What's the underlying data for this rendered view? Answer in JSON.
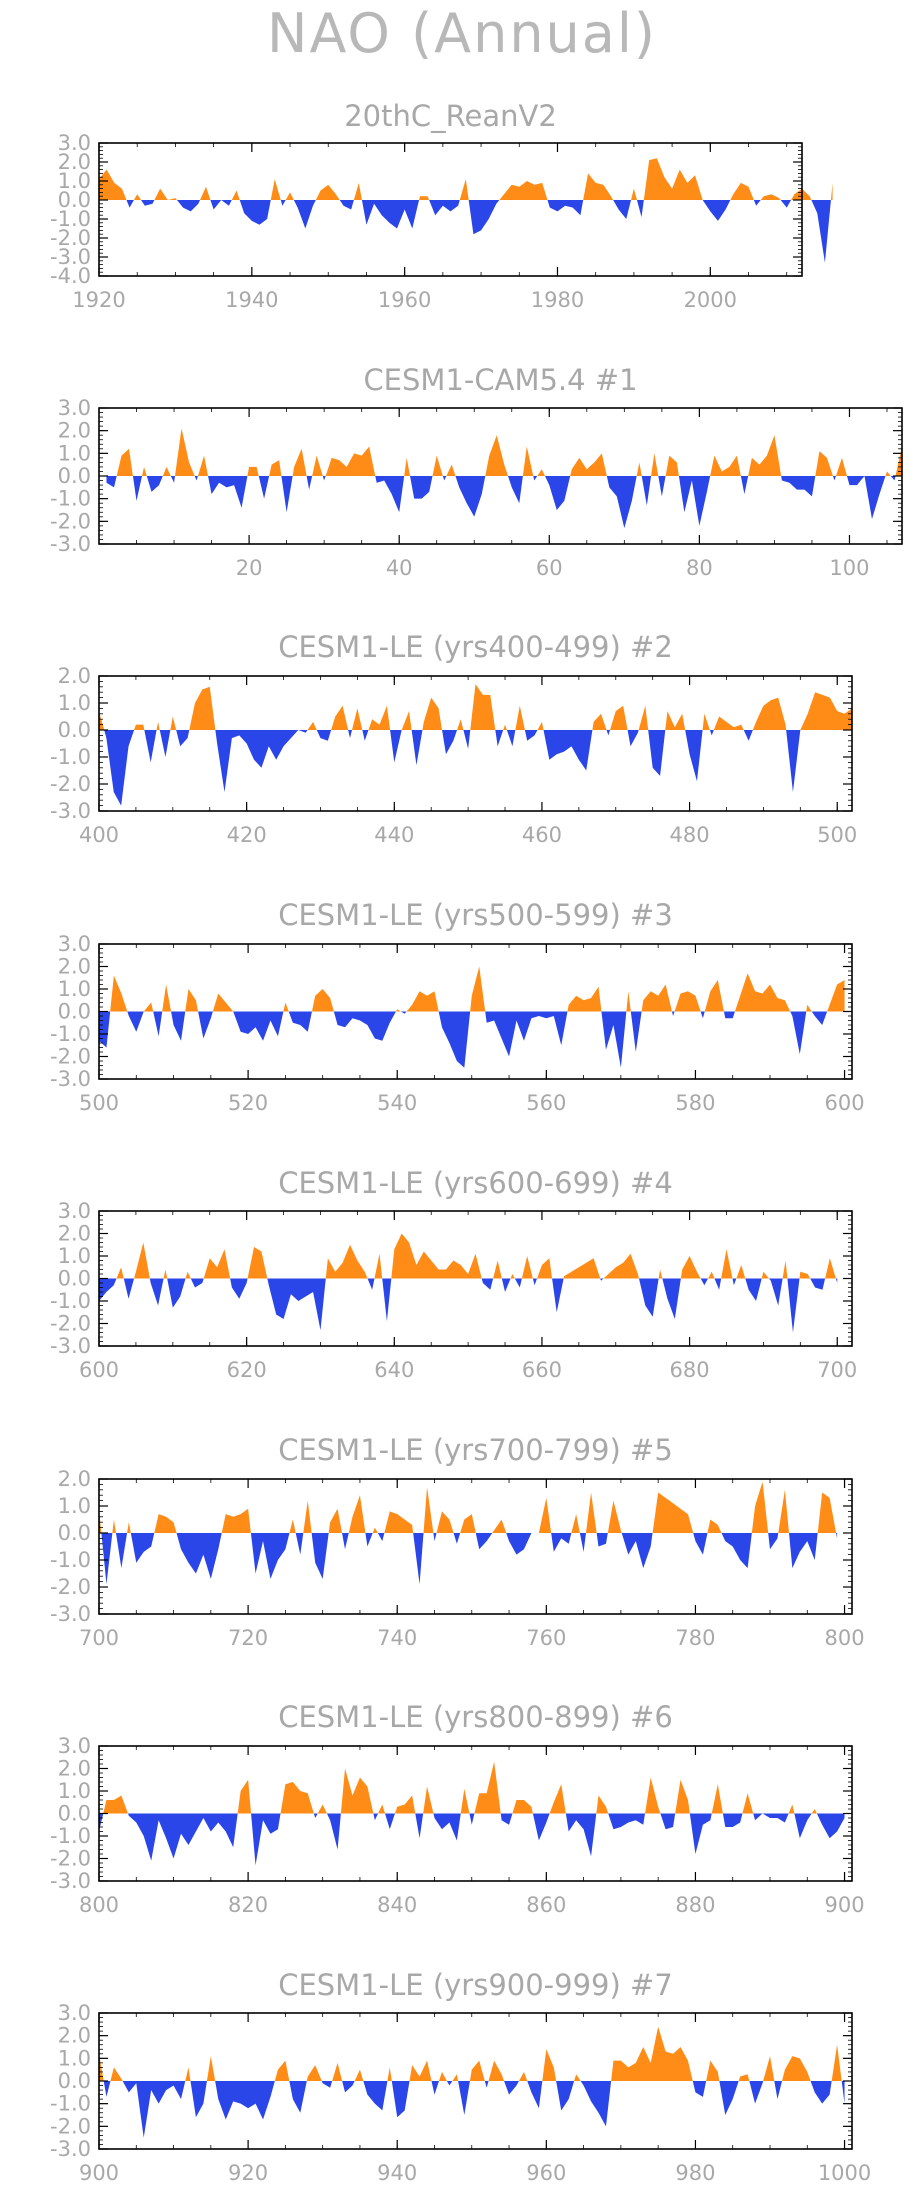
{
  "page_title": "NAO  (Annual)",
  "colors": {
    "positive": "#ff8c17",
    "negative": "#2b46e8",
    "text": "#a8a8a8",
    "axis": "#000000"
  },
  "chart_data": [
    {
      "type": "area",
      "title": "20thC_ReanV2",
      "xlim": [
        1920,
        2012
      ],
      "ylim": [
        -4.0,
        3.0
      ],
      "yticks": [
        "3.0",
        "2.0",
        "1.0",
        "0.0",
        "-1.0",
        "-2.0",
        "-3.0",
        "-4.0"
      ],
      "xticks": [
        "1920",
        "1940",
        "1960",
        "1980",
        "2000"
      ],
      "values": [
        1.1,
        1.6,
        0.9,
        0.6,
        -0.4,
        0.3,
        -0.3,
        -0.2,
        0.6,
        0.0,
        0.1,
        -0.4,
        -0.6,
        -0.2,
        0.7,
        -0.5,
        0.0,
        -0.3,
        0.5,
        -0.7,
        -1.1,
        -1.3,
        -1.0,
        1.1,
        -0.3,
        0.4,
        -0.4,
        -1.5,
        -0.3,
        0.5,
        0.8,
        0.3,
        -0.3,
        -0.5,
        0.9,
        -1.3,
        -0.2,
        -0.8,
        -1.2,
        -1.5,
        -0.5,
        -1.5,
        0.2,
        0.2,
        -0.8,
        -0.3,
        -0.6,
        -0.3,
        1.1,
        -1.8,
        -1.6,
        -1.0,
        -0.2,
        0.3,
        0.8,
        0.7,
        1.0,
        0.8,
        0.9,
        -0.4,
        -0.6,
        -0.3,
        -0.4,
        -0.8,
        1.4,
        0.9,
        0.8,
        0.2,
        -0.5,
        -1.0,
        0.6,
        -0.9,
        2.1,
        2.2,
        1.2,
        0.6,
        1.6,
        0.9,
        1.3,
        0.0,
        -0.6,
        -1.1,
        -0.5,
        0.3,
        0.9,
        0.7,
        -0.3,
        0.2,
        0.3,
        0.1,
        -0.4,
        0.3,
        0.6,
        0.2,
        -0.7,
        -3.3,
        0.9
      ]
    },
    {
      "type": "area",
      "title": "CESM1-CAM5.4           #1",
      "xlim": [
        0,
        107
      ],
      "ylim": [
        -3.0,
        3.0
      ],
      "yticks": [
        "3.0",
        "2.0",
        "1.0",
        "0.0",
        "-1.0",
        "-2.0",
        "-3.0"
      ],
      "xticks": [
        "20",
        "40",
        "60",
        "80",
        "100"
      ],
      "values": [
        -0.3,
        -0.5,
        0.9,
        1.2,
        -1.1,
        0.4,
        -0.7,
        -0.4,
        0.4,
        -0.3,
        2.1,
        0.6,
        -0.2,
        0.9,
        -0.8,
        -0.3,
        -0.5,
        -0.4,
        -1.4,
        0.4,
        0.4,
        -1.0,
        0.5,
        0.7,
        -1.6,
        0.4,
        1.2,
        -0.6,
        0.9,
        -0.2,
        0.8,
        0.7,
        0.4,
        1.0,
        0.9,
        1.3,
        -0.3,
        -0.2,
        -0.8,
        -1.6,
        0.8,
        -1.0,
        -1.0,
        -0.7,
        0.9,
        -0.2,
        0.5,
        -0.5,
        -1.2,
        -1.8,
        -0.8,
        0.9,
        1.8,
        0.5,
        -0.5,
        -1.2,
        1.3,
        -0.2,
        0.3,
        -0.4,
        -1.5,
        -1.1,
        0.3,
        0.8,
        0.3,
        0.6,
        1.0,
        -0.5,
        -0.9,
        -2.3,
        -1.1,
        0.6,
        -1.3,
        1.0,
        -0.9,
        0.9,
        0.6,
        -1.6,
        -0.2,
        -2.2,
        -0.7,
        0.9,
        0.2,
        0.4,
        0.9,
        -0.8,
        0.8,
        0.5,
        0.9,
        1.8,
        -0.2,
        -0.3,
        -0.6,
        -0.6,
        -0.9,
        1.1,
        0.8,
        -0.2,
        0.8,
        -0.4,
        -0.4,
        0.0,
        -1.9,
        -0.8,
        0.2,
        -0.2,
        1.3
      ]
    },
    {
      "type": "area",
      "title": "CESM1-LE (yrs400-499) #2",
      "xlim": [
        400,
        502
      ],
      "ylim": [
        -3.0,
        2.0
      ],
      "yticks": [
        "2.0",
        "1.0",
        "0.0",
        "-1.0",
        "-2.0",
        "-3.0"
      ],
      "xticks": [
        "400",
        "420",
        "440",
        "460",
        "480",
        "500"
      ],
      "values": [
        0.7,
        -0.3,
        -2.3,
        -2.8,
        -0.6,
        0.2,
        0.2,
        -1.2,
        0.3,
        -1.0,
        0.5,
        -0.6,
        -0.3,
        1.0,
        1.5,
        1.6,
        -0.5,
        -2.3,
        -0.3,
        -0.2,
        -0.5,
        -1.1,
        -1.4,
        -0.6,
        -1.1,
        -0.6,
        -0.3,
        0.0,
        -0.1,
        0.3,
        -0.3,
        -0.4,
        0.5,
        0.9,
        -0.3,
        0.8,
        -0.4,
        0.4,
        0.2,
        0.9,
        -1.2,
        0.0,
        0.7,
        -1.3,
        0.3,
        1.2,
        0.8,
        -0.9,
        -0.4,
        0.4,
        -0.7,
        1.7,
        1.3,
        1.3,
        -0.6,
        0.2,
        -0.6,
        0.9,
        -0.4,
        -0.2,
        0.3,
        -1.1,
        -0.9,
        -0.8,
        -0.6,
        -1.1,
        -1.5,
        0.3,
        0.6,
        -0.2,
        0.7,
        0.9,
        -0.6,
        -0.1,
        0.9,
        -1.4,
        -1.7,
        0.7,
        0.1,
        0.6,
        -0.9,
        -1.9,
        0.6,
        -0.2,
        0.5,
        0.3,
        0.1,
        0.2,
        -0.4,
        0.3,
        0.9,
        1.1,
        1.2,
        0.2,
        -2.3,
        0.0,
        0.6,
        1.4,
        1.3,
        1.2,
        0.7,
        0.6,
        0.8
      ]
    },
    {
      "type": "area",
      "title": "CESM1-LE (yrs500-599) #3",
      "xlim": [
        500,
        601
      ],
      "ylim": [
        -3.0,
        3.0
      ],
      "yticks": [
        "3.0",
        "2.0",
        "1.0",
        "0.0",
        "-1.0",
        "-2.0",
        "-3.0"
      ],
      "xticks": [
        "500",
        "520",
        "540",
        "560",
        "580",
        "600"
      ],
      "values": [
        -1.3,
        -1.6,
        1.6,
        0.8,
        -0.2,
        -0.9,
        0.0,
        0.4,
        -1.1,
        1.2,
        -0.6,
        -1.3,
        1.0,
        0.5,
        -1.2,
        -0.3,
        0.8,
        0.4,
        0.0,
        -0.9,
        -1.0,
        -0.7,
        -1.3,
        -0.4,
        -1.1,
        0.4,
        -0.5,
        -0.6,
        -0.9,
        0.7,
        1.0,
        0.6,
        -0.6,
        -0.7,
        -0.3,
        -0.4,
        -0.6,
        -1.2,
        -1.3,
        -0.5,
        0.1,
        -0.1,
        0.3,
        0.9,
        0.7,
        0.9,
        -0.7,
        -1.4,
        -2.2,
        -2.5,
        0.7,
        2.0,
        -0.5,
        -0.4,
        -1.2,
        -2.0,
        -0.4,
        -1.3,
        -0.3,
        -0.2,
        -0.3,
        -0.2,
        -1.5,
        0.3,
        0.7,
        0.5,
        0.6,
        1.1,
        -1.7,
        -0.6,
        -2.5,
        0.9,
        -1.8,
        0.5,
        0.9,
        0.7,
        1.2,
        -0.2,
        0.8,
        0.9,
        0.7,
        -0.3,
        0.9,
        1.4,
        -0.3,
        -0.3,
        0.7,
        1.7,
        0.9,
        0.8,
        1.2,
        0.6,
        0.5,
        -0.2,
        -1.9,
        0.3,
        -0.2,
        -0.6,
        0.3,
        1.2,
        1.4
      ]
    },
    {
      "type": "area",
      "title": "CESM1-LE (yrs600-699) #4",
      "xlim": [
        600,
        702
      ],
      "ylim": [
        -3.0,
        3.0
      ],
      "yticks": [
        "3.0",
        "2.0",
        "1.0",
        "0.0",
        "-1.0",
        "-2.0",
        "-3.0"
      ],
      "xticks": [
        "600",
        "620",
        "640",
        "660",
        "680",
        "700"
      ],
      "values": [
        -1.0,
        -0.6,
        -0.3,
        0.5,
        -0.9,
        0.3,
        1.6,
        -0.2,
        -1.2,
        0.4,
        -1.3,
        -0.8,
        0.3,
        -0.4,
        -0.2,
        0.9,
        0.5,
        1.3,
        -0.4,
        -0.9,
        -0.2,
        1.4,
        1.2,
        -0.3,
        -1.6,
        -1.8,
        -0.7,
        -1.0,
        -0.8,
        -0.6,
        -2.3,
        0.9,
        0.3,
        0.7,
        1.5,
        0.8,
        0.3,
        -0.5,
        1.1,
        -1.9,
        1.3,
        2.0,
        1.6,
        0.6,
        1.2,
        0.8,
        0.4,
        0.4,
        0.8,
        0.6,
        0.2,
        1.1,
        -0.2,
        -0.5,
        0.8,
        -0.6,
        0.2,
        -0.4,
        1.0,
        -0.3,
        0.6,
        0.9,
        -1.5,
        0.1,
        0.3,
        0.5,
        0.7,
        0.9,
        -0.1,
        0.2,
        0.5,
        0.7,
        1.1,
        0.2,
        -1.2,
        -1.7,
        0.4,
        -0.9,
        -1.8,
        0.4,
        1.0,
        0.3,
        -0.3,
        0.3,
        -0.5,
        1.3,
        -0.3,
        0.6,
        -0.5,
        -1.0,
        0.3,
        -0.1,
        -1.2,
        0.8,
        -2.4,
        0.3,
        0.2,
        -0.4,
        -0.5,
        0.9,
        -0.2
      ]
    },
    {
      "type": "area",
      "title": "CESM1-LE (yrs700-799) #5",
      "xlim": [
        700,
        801
      ],
      "ylim": [
        -3.0,
        2.0
      ],
      "yticks": [
        "2.0",
        "1.0",
        "0.0",
        "-1.0",
        "-2.0",
        "-3.0"
      ],
      "xticks": [
        "700",
        "720",
        "740",
        "760",
        "780",
        "800"
      ],
      "values": [
        0.9,
        -1.9,
        0.5,
        -1.3,
        0.4,
        -1.1,
        -0.7,
        -0.5,
        0.7,
        0.6,
        0.4,
        -0.6,
        -1.1,
        -1.5,
        -0.8,
        -1.7,
        -0.6,
        0.7,
        0.6,
        0.7,
        0.9,
        -1.5,
        -0.3,
        -1.7,
        -1.0,
        -0.6,
        0.5,
        -0.8,
        1.2,
        -1.1,
        -1.7,
        0.4,
        0.9,
        -0.6,
        0.6,
        1.4,
        -0.5,
        0.2,
        -0.3,
        0.8,
        0.7,
        0.5,
        0.3,
        -1.9,
        1.7,
        -0.3,
        0.8,
        0.5,
        -0.4,
        0.5,
        0.7,
        -0.6,
        -0.3,
        0.1,
        0.5,
        -0.3,
        -0.8,
        -0.6,
        0.0,
        0.0,
        1.3,
        -0.7,
        -0.2,
        -0.4,
        0.7,
        -0.7,
        1.5,
        -0.5,
        -0.4,
        1.2,
        0.1,
        -0.8,
        -0.3,
        -1.3,
        -0.5,
        1.5,
        1.3,
        1.1,
        0.9,
        0.7,
        -0.3,
        -0.8,
        0.5,
        0.3,
        -0.3,
        -0.5,
        -1.0,
        -1.3,
        1.0,
        1.9,
        -0.6,
        -0.2,
        1.6,
        -1.3,
        -0.7,
        -0.3,
        -1.0,
        1.5,
        1.3,
        -0.2
      ]
    },
    {
      "type": "area",
      "title": "CESM1-LE (yrs800-899) #6",
      "xlim": [
        800,
        901
      ],
      "ylim": [
        -3.0,
        3.0
      ],
      "yticks": [
        "3.0",
        "2.0",
        "1.0",
        "0.0",
        "-1.0",
        "-2.0",
        "-3.0"
      ],
      "xticks": [
        "800",
        "820",
        "840",
        "860",
        "880",
        "900"
      ],
      "values": [
        -0.8,
        0.6,
        0.6,
        0.8,
        -0.1,
        -0.4,
        -1.0,
        -2.1,
        -0.3,
        -1.1,
        -2.0,
        -0.9,
        -1.4,
        -0.8,
        -0.2,
        -0.8,
        -0.4,
        -0.8,
        -1.5,
        1.0,
        1.5,
        -2.3,
        -0.3,
        -0.9,
        -0.7,
        1.3,
        1.4,
        1.0,
        0.9,
        -0.2,
        0.4,
        -0.3,
        -1.6,
        2.0,
        0.8,
        1.6,
        1.2,
        -0.3,
        0.4,
        -0.7,
        0.3,
        0.4,
        0.8,
        -1.1,
        1.2,
        -0.2,
        -0.7,
        -0.4,
        -1.2,
        1.1,
        -0.5,
        0.9,
        0.9,
        2.3,
        -0.3,
        -0.5,
        0.6,
        0.6,
        0.3,
        -1.2,
        -0.4,
        0.5,
        1.3,
        -0.8,
        -0.3,
        -0.7,
        -1.9,
        0.8,
        0.3,
        -0.7,
        -0.6,
        -0.4,
        -0.3,
        -0.5,
        1.6,
        0.3,
        -0.7,
        -0.6,
        1.5,
        0.6,
        -1.8,
        -0.5,
        -0.3,
        1.3,
        -0.6,
        -0.6,
        -0.4,
        0.9,
        -0.3,
        0.0,
        -0.2,
        -0.2,
        -0.4,
        0.4,
        -1.1,
        -0.3,
        0.2,
        -0.5,
        -1.1,
        -0.8,
        -0.2
      ]
    },
    {
      "type": "area",
      "title": "CESM1-LE (yrs900-999) #7",
      "xlim": [
        900,
        1001
      ],
      "ylim": [
        -3.0,
        3.0
      ],
      "yticks": [
        "3.0",
        "2.0",
        "1.0",
        "0.0",
        "-1.0",
        "-2.0",
        "-3.0"
      ],
      "xticks": [
        "900",
        "920",
        "940",
        "960",
        "980",
        "1000"
      ],
      "values": [
        1.2,
        -0.7,
        0.6,
        0.1,
        -0.5,
        -0.1,
        -2.5,
        -0.4,
        -1.0,
        -0.4,
        -0.2,
        -0.8,
        0.6,
        -1.6,
        -1.0,
        1.1,
        -0.8,
        -1.7,
        -0.9,
        -1.0,
        -1.2,
        -1.0,
        -1.7,
        -0.7,
        0.5,
        0.9,
        -0.8,
        -1.4,
        0.2,
        0.7,
        -0.1,
        -0.3,
        0.8,
        -0.5,
        -0.2,
        0.5,
        -0.6,
        -1.0,
        -1.3,
        0.6,
        -1.6,
        -1.3,
        0.7,
        0.2,
        0.9,
        -0.6,
        0.4,
        -0.2,
        0.3,
        -1.5,
        0.5,
        0.9,
        -0.3,
        0.9,
        0.3,
        -0.6,
        -0.2,
        0.4,
        -0.5,
        -1.2,
        1.4,
        0.6,
        -1.3,
        -0.8,
        0.3,
        -0.2,
        -0.9,
        -1.4,
        -2.0,
        0.9,
        0.9,
        0.6,
        0.8,
        1.5,
        0.8,
        2.4,
        1.3,
        1.2,
        1.5,
        0.9,
        -0.5,
        -0.7,
        0.9,
        0.4,
        -1.5,
        -0.8,
        0.2,
        0.3,
        -1.0,
        -0.1,
        1.1,
        -0.8,
        0.5,
        1.1,
        1.0,
        0.4,
        -0.5,
        -1.0,
        -0.6,
        1.6,
        -1.0
      ]
    }
  ]
}
